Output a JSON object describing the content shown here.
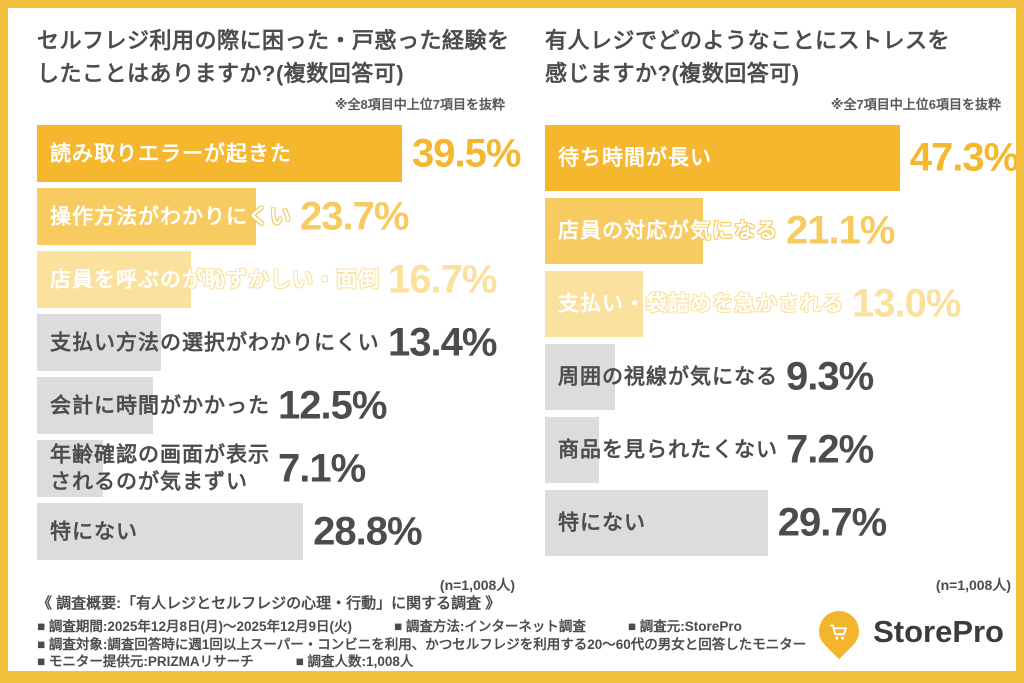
{
  "palette": {
    "bar_gold": "#F4B72E",
    "bar_mid": "#F8CB60",
    "bar_pale": "#FAE29E",
    "bar_gray": "#DCDCDC",
    "text_dark": "#4D4C4C",
    "frame_yellow": "#F2C13D",
    "logo_yellow": "#F2B52B"
  },
  "chart_data": [
    {
      "type": "bar",
      "orientation": "horizontal",
      "title": "セルフレジ利用の際に困った・戸惑った経験をしたことはありますか?(複数回答可)",
      "title_lines": [
        "セルフレジ利用の際に困った・戸惑った経験を",
        "したことはありますか?(複数回答可)"
      ],
      "note": "※全8項目中上位7項目を抜粋",
      "n_label": "(n=1,008人)",
      "categories": [
        "読み取りエラーが起きた",
        "操作方法がわかりにくい",
        "店員を呼ぶのが恥ずかしい・面倒",
        "支払い方法の選択がわかりにくい",
        "会計に時間がかかった",
        "年齢確認の画面が表示\nされるのが気まずい",
        "特にない"
      ],
      "values": [
        39.5,
        23.7,
        16.7,
        13.4,
        12.5,
        7.1,
        28.8
      ],
      "value_labels": [
        "39.5%",
        "23.7%",
        "16.7%",
        "13.4%",
        "12.5%",
        "7.1%",
        "28.8%"
      ],
      "tiers": [
        "gold",
        "mid",
        "pale",
        "gray",
        "gray",
        "gray",
        "gray"
      ],
      "xlim": [
        0,
        51
      ],
      "grid": false,
      "legend": "none"
    },
    {
      "type": "bar",
      "orientation": "horizontal",
      "title": "有人レジでどのようなことにストレスを感じますか?(複数回答可)",
      "title_lines": [
        "有人レジでどのようなことにストレスを",
        "感じますか?(複数回答可)"
      ],
      "note": "※全7項目中上位6項目を抜粋",
      "n_label": "(n=1,008人)",
      "categories": [
        "待ち時間が長い",
        "店員の対応が気になる",
        "支払い・袋詰めを急かされる",
        "周囲の視線が気になる",
        "商品を見られたくない",
        "特にない"
      ],
      "values": [
        47.3,
        21.1,
        13.0,
        9.3,
        7.2,
        29.7
      ],
      "value_labels": [
        "47.3%",
        "21.1%",
        "13.0%",
        "9.3%",
        "7.2%",
        "29.7%"
      ],
      "tiers": [
        "gold",
        "mid",
        "pale",
        "gray",
        "gray",
        "gray"
      ],
      "xlim": [
        0,
        62
      ],
      "grid": false,
      "legend": "none"
    }
  ],
  "footer": {
    "heading": "《 調査概要:「有人レジとセルフレジの心理・行動」に関する調査 》",
    "lines": [
      [
        "■ 調査期間:2025年12月8日(月)〜2025年12月9日(火)",
        "■ 調査方法:インターネット調査",
        "■ 調査元:StorePro"
      ],
      [
        "■ 調査対象:調査回答時に週1回以上スーパー・コンビニを利用、かつセルフレジを利用する20〜60代の男女と回答したモニター"
      ],
      [
        "■ モニター提供元:PRIZMAリサーチ",
        "■ 調査人数:1,008人"
      ]
    ]
  },
  "logo": {
    "text": "StorePro",
    "icon": "cart-pin-icon"
  }
}
